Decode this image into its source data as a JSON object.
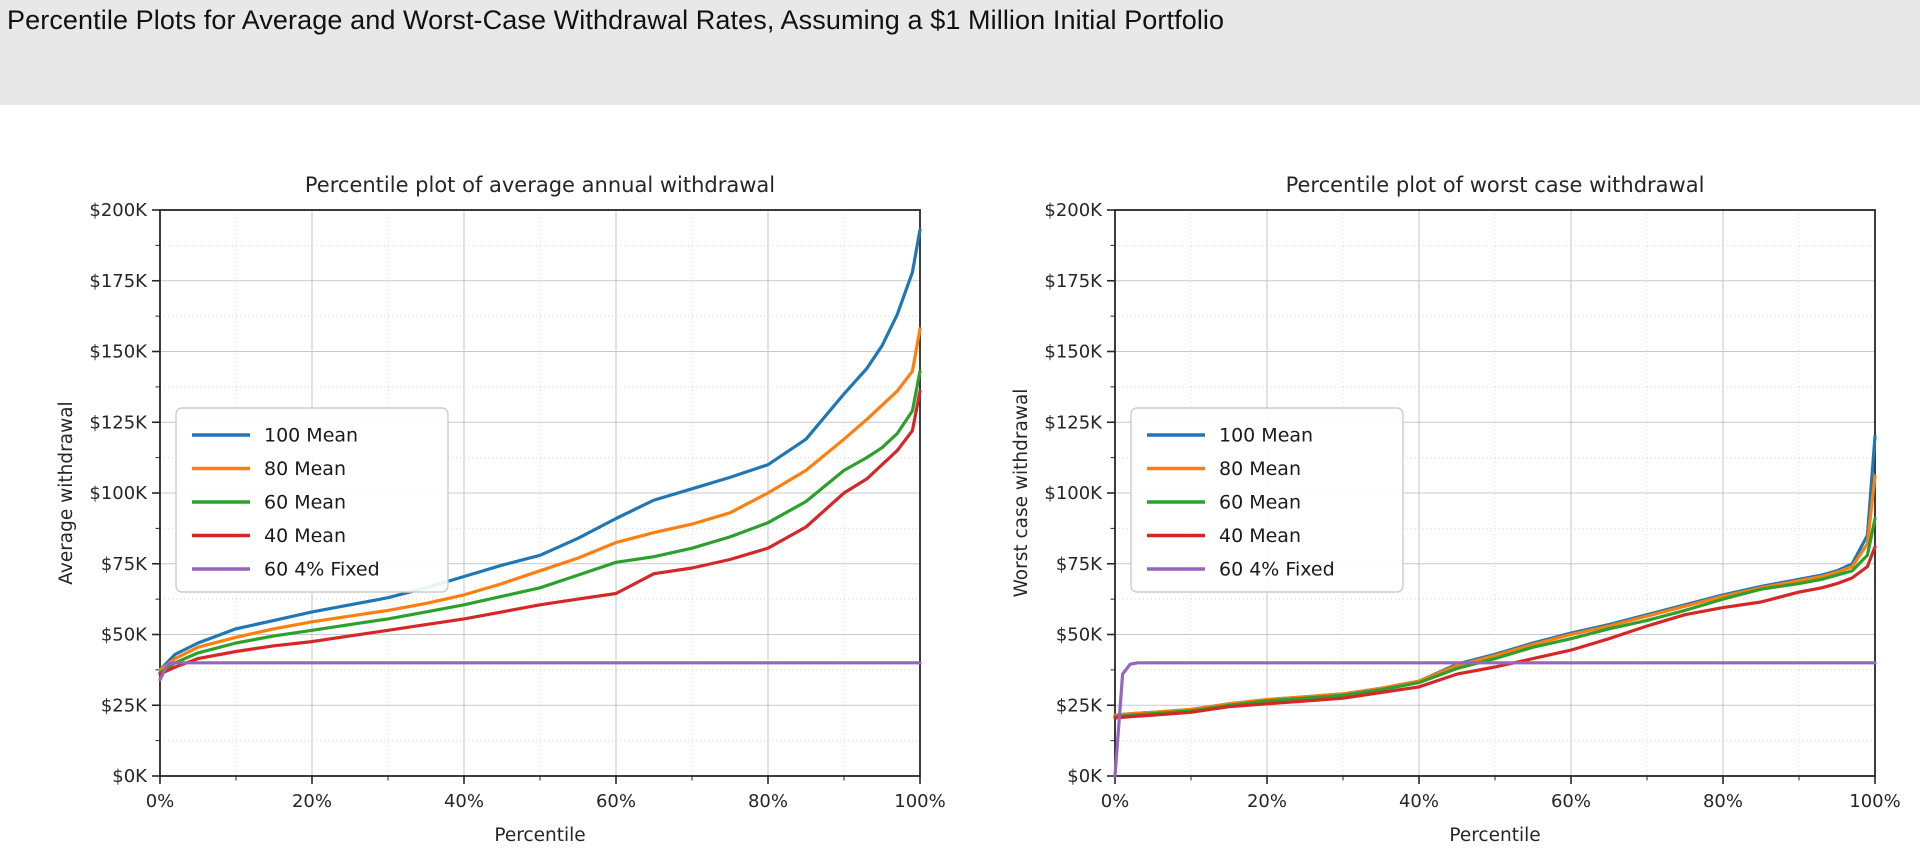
{
  "header": {
    "title": "Percentile Plots for Average and Worst-Case Withdrawal Rates, Assuming a $1 Million Initial Portfolio"
  },
  "chart_data": [
    {
      "type": "line",
      "title": "Percentile plot of average annual withdrawal",
      "xlabel": "Percentile",
      "ylabel": "Average withdrawal",
      "xlim": [
        0,
        100
      ],
      "ylim": [
        0,
        200
      ],
      "unit": "$K",
      "grid": "major and minor, light gray dotted",
      "legend_position": "upper left",
      "x_tick_labels": [
        "0%",
        "20%",
        "40%",
        "60%",
        "80%",
        "100%"
      ],
      "y_tick_labels": [
        "$0K",
        "$25K",
        "$50K",
        "$75K",
        "$100K",
        "$125K",
        "$150K",
        "$175K",
        "$200K"
      ],
      "series": [
        {
          "name": "100 Mean",
          "color": "#1f77b4",
          "x": [
            0,
            2,
            5,
            10,
            15,
            20,
            25,
            30,
            35,
            40,
            45,
            50,
            55,
            60,
            65,
            70,
            75,
            80,
            85,
            90,
            93,
            95,
            97,
            99,
            100
          ],
          "values": [
            37.5,
            43,
            47,
            52,
            55,
            58,
            60.5,
            63,
            66.5,
            70.5,
            74.5,
            78,
            84,
            91,
            97.5,
            101.5,
            105.5,
            110,
            119,
            135,
            144,
            152,
            163,
            178,
            193
          ]
        },
        {
          "name": "80 Mean",
          "color": "#ff7f0e",
          "x": [
            0,
            2,
            5,
            10,
            15,
            20,
            25,
            30,
            35,
            40,
            45,
            50,
            55,
            60,
            65,
            70,
            75,
            80,
            85,
            90,
            93,
            95,
            97,
            99,
            100
          ],
          "values": [
            37.5,
            41.5,
            45.5,
            49,
            52,
            54.5,
            56.5,
            58.5,
            61,
            64,
            68,
            72.5,
            77,
            82.5,
            86,
            89,
            93,
            100,
            108,
            119,
            126,
            131,
            136,
            143,
            158
          ]
        },
        {
          "name": "60 Mean",
          "color": "#2ca02c",
          "x": [
            0,
            2,
            5,
            10,
            15,
            20,
            25,
            30,
            35,
            40,
            45,
            50,
            55,
            60,
            65,
            70,
            75,
            80,
            85,
            90,
            93,
            95,
            97,
            99,
            100
          ],
          "values": [
            36.5,
            40,
            43.5,
            47,
            49.5,
            51.5,
            53.5,
            55.5,
            58,
            60.5,
            63.5,
            66.5,
            71,
            75.5,
            77.5,
            80.5,
            84.5,
            89.5,
            97,
            108,
            112.5,
            116,
            121,
            129,
            143
          ]
        },
        {
          "name": "40 Mean",
          "color": "#d62728",
          "x": [
            0,
            2,
            5,
            10,
            15,
            20,
            25,
            30,
            35,
            40,
            45,
            50,
            55,
            60,
            65,
            70,
            75,
            80,
            85,
            90,
            93,
            95,
            97,
            99,
            100
          ],
          "values": [
            36,
            38.5,
            41.5,
            44,
            46,
            47.5,
            49.5,
            51.5,
            53.5,
            55.5,
            58,
            60.5,
            62.5,
            64.5,
            71.5,
            73.5,
            76.5,
            80.5,
            88,
            100,
            105,
            110,
            115,
            122,
            136
          ]
        },
        {
          "name": "60 4% Fixed",
          "color": "#9467bd",
          "x": [
            0,
            1,
            2,
            100
          ],
          "values": [
            34,
            39.5,
            40,
            40
          ]
        }
      ]
    },
    {
      "type": "line",
      "title": "Percentile plot of worst case withdrawal",
      "xlabel": "Percentile",
      "ylabel": "Worst case withdrawal",
      "xlim": [
        0,
        100
      ],
      "ylim": [
        0,
        200
      ],
      "unit": "$K",
      "grid": "major and minor, light gray dotted",
      "legend_position": "upper left",
      "x_tick_labels": [
        "0%",
        "20%",
        "40%",
        "60%",
        "80%",
        "100%"
      ],
      "y_tick_labels": [
        "$0K",
        "$25K",
        "$50K",
        "$75K",
        "$100K",
        "$125K",
        "$150K",
        "$175K",
        "$200K"
      ],
      "series": [
        {
          "name": "100 Mean",
          "color": "#1f77b4",
          "x": [
            0,
            2,
            5,
            10,
            15,
            20,
            25,
            30,
            35,
            40,
            45,
            50,
            55,
            60,
            65,
            70,
            75,
            80,
            85,
            90,
            93,
            95,
            97,
            99,
            100
          ],
          "values": [
            21.5,
            22,
            22.5,
            23.5,
            25.5,
            27,
            28,
            29,
            31,
            33.5,
            39.5,
            43,
            47,
            50.5,
            53.5,
            57,
            60.5,
            64,
            67,
            69.5,
            71,
            72.5,
            75,
            85,
            120
          ]
        },
        {
          "name": "80 Mean",
          "color": "#ff7f0e",
          "x": [
            0,
            2,
            5,
            10,
            15,
            20,
            25,
            30,
            35,
            40,
            45,
            50,
            55,
            60,
            65,
            70,
            75,
            80,
            85,
            90,
            93,
            95,
            97,
            99,
            100
          ],
          "values": [
            21.5,
            22,
            22.5,
            23.5,
            25.5,
            27,
            28,
            29,
            31,
            33.5,
            39,
            42.5,
            46.5,
            50,
            53,
            56.5,
            60,
            63.5,
            66.5,
            69,
            70.5,
            72,
            74,
            82,
            106
          ]
        },
        {
          "name": "60 Mean",
          "color": "#2ca02c",
          "x": [
            0,
            2,
            5,
            10,
            15,
            20,
            25,
            30,
            35,
            40,
            45,
            50,
            55,
            60,
            65,
            70,
            75,
            80,
            85,
            90,
            93,
            95,
            97,
            99,
            100
          ],
          "values": [
            21,
            21.5,
            22,
            23,
            25,
            26.5,
            27.5,
            28.5,
            30.5,
            33,
            38,
            41.5,
            45.5,
            48.5,
            52,
            55,
            58.5,
            62.5,
            66,
            68,
            69.5,
            71,
            72.5,
            78,
            91
          ]
        },
        {
          "name": "40 Mean",
          "color": "#d62728",
          "x": [
            0,
            2,
            5,
            10,
            15,
            20,
            25,
            30,
            35,
            40,
            45,
            50,
            55,
            60,
            65,
            70,
            75,
            80,
            85,
            90,
            93,
            95,
            97,
            99,
            100
          ],
          "values": [
            20.5,
            21,
            21.5,
            22.5,
            24.5,
            25.5,
            26.5,
            27.5,
            29.5,
            31.5,
            36,
            38.5,
            41.5,
            44.5,
            48.5,
            53,
            57,
            59.5,
            61.5,
            65,
            66.5,
            68,
            70,
            74,
            81
          ]
        },
        {
          "name": "60 4% Fixed",
          "color": "#9467bd",
          "x": [
            0,
            0.5,
            1,
            2,
            3,
            100
          ],
          "values": [
            0,
            18,
            36,
            39.5,
            40,
            40
          ]
        }
      ]
    }
  ]
}
